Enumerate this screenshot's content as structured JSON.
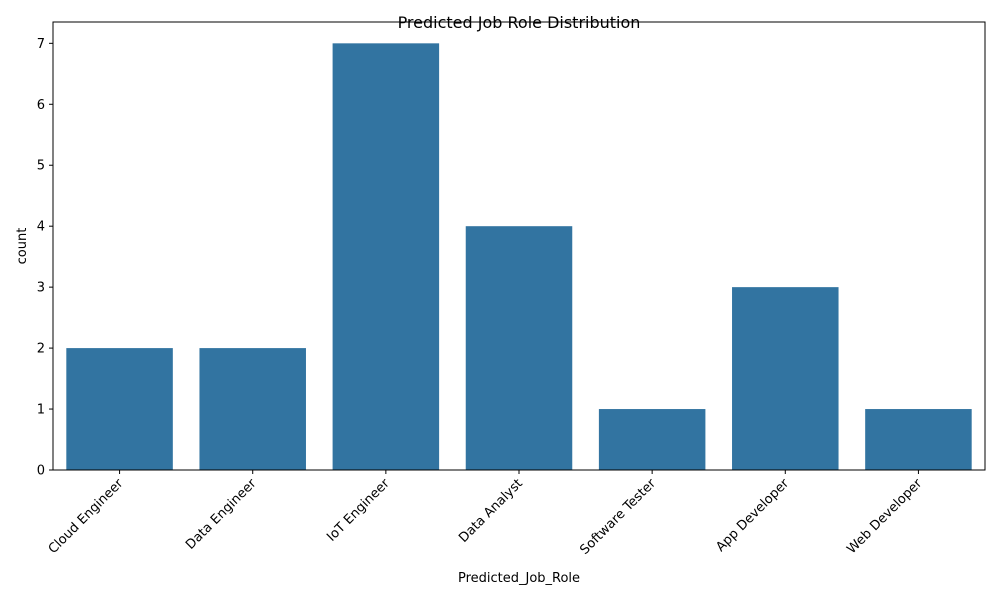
{
  "chart_data": {
    "type": "bar",
    "title": "Predicted Job Role Distribution",
    "xlabel": "Predicted_Job_Role",
    "ylabel": "count",
    "categories": [
      "Cloud Engineer",
      "Data Engineer",
      "IoT Engineer",
      "Data Analyst",
      "Software Tester",
      "App Developer",
      "Web Developer"
    ],
    "values": [
      2,
      2,
      7,
      4,
      1,
      3,
      1
    ],
    "ylim": [
      0,
      7.35
    ],
    "yticks": [
      0,
      1,
      2,
      3,
      4,
      5,
      6,
      7
    ],
    "bar_color": "#3274a1",
    "grid": false,
    "legend": "none"
  }
}
